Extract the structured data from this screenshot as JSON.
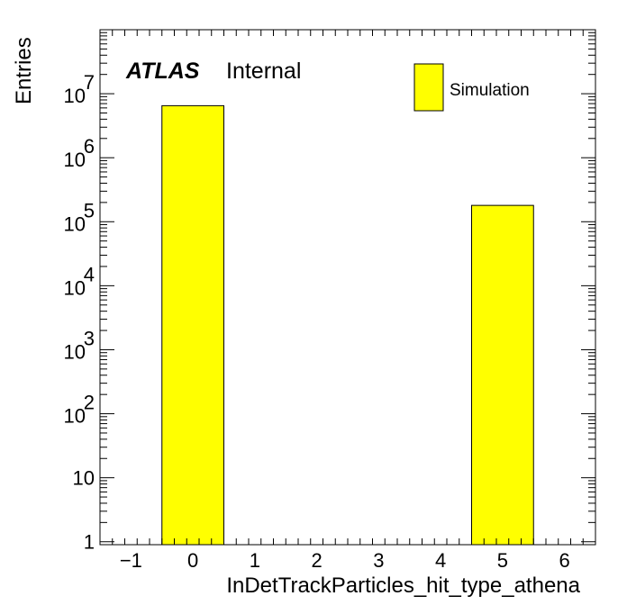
{
  "chart_data": {
    "type": "bar",
    "ylabel": "Entries",
    "xlabel": "InDetTrackParticles_hit_type_athena",
    "yscale": "log",
    "xlim": [
      -1.5,
      6.5
    ],
    "ylim": [
      0.9,
      100000000
    ],
    "x_ticks": [
      -1,
      0,
      1,
      2,
      3,
      4,
      5,
      6
    ],
    "x_tick_labels": [
      "−1",
      "0",
      "1",
      "2",
      "3",
      "4",
      "5",
      "6"
    ],
    "y_tick_labels": [
      {
        "value": 1,
        "base": "1",
        "exp": ""
      },
      {
        "value": 10,
        "base": "10",
        "exp": ""
      },
      {
        "value": 100,
        "base": "10",
        "exp": "2"
      },
      {
        "value": 1000,
        "base": "10",
        "exp": "3"
      },
      {
        "value": 10000,
        "base": "10",
        "exp": "4"
      },
      {
        "value": 100000,
        "base": "10",
        "exp": "5"
      },
      {
        "value": 1000000,
        "base": "10",
        "exp": "6"
      },
      {
        "value": 10000000,
        "base": "10",
        "exp": "7"
      }
    ],
    "bins": [
      {
        "low": -0.5,
        "high": 0.5,
        "value": 6500000
      },
      {
        "low": 4.5,
        "high": 5.5,
        "value": 180000
      }
    ],
    "series": [
      {
        "name": "Simulation",
        "color": "#ffff00"
      }
    ],
    "grid": false,
    "legend_position": "top-right"
  },
  "labels": {
    "atlas": "ATLAS",
    "status": "Internal"
  },
  "colors": {
    "fill": "#ffff00",
    "line": "#000000"
  }
}
